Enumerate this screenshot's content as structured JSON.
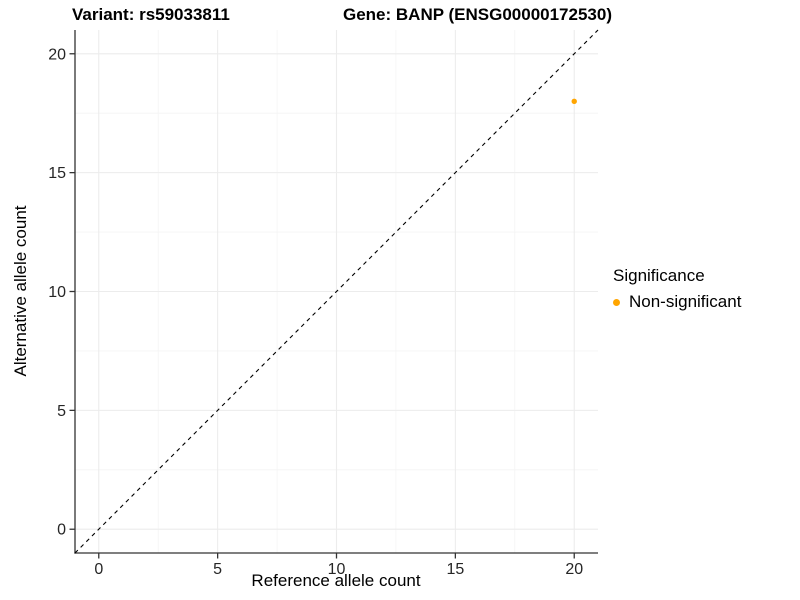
{
  "chart_data": {
    "type": "scatter",
    "titles": {
      "left": "Variant: rs59033811",
      "right": "Gene: BANP (ENSG00000172530)"
    },
    "xlabel": "Reference allele count",
    "ylabel": "Alternative allele count",
    "xlim": [
      -1,
      21
    ],
    "ylim": [
      -1,
      21
    ],
    "x_ticks": [
      0,
      5,
      10,
      15,
      20
    ],
    "y_ticks": [
      0,
      5,
      10,
      15,
      20
    ],
    "x_minor_ticks": [
      2.5,
      7.5,
      12.5,
      17.5
    ],
    "y_minor_ticks": [
      2.5,
      7.5,
      12.5,
      17.5
    ],
    "grid": "major and minor gridlines, white panel background",
    "identity_line": {
      "style": "dashed",
      "from": [
        -1,
        -1
      ],
      "to": [
        21,
        21
      ],
      "color": "#000000"
    },
    "series": [
      {
        "name": "Non-significant",
        "color": "#FFA500",
        "points": [
          {
            "x": 20,
            "y": 18
          }
        ]
      }
    ],
    "legend": {
      "title": "Significance",
      "position": "right",
      "items": [
        {
          "label": "Non-significant",
          "color": "#FFA500"
        }
      ]
    }
  },
  "style": {
    "axis_color": "#333333",
    "tick_label_color": "#262626",
    "grid_major_color": "#ECECEC",
    "grid_minor_color": "#F4F4F4",
    "point_color": "#FFA500",
    "background": "#FFFFFF"
  }
}
